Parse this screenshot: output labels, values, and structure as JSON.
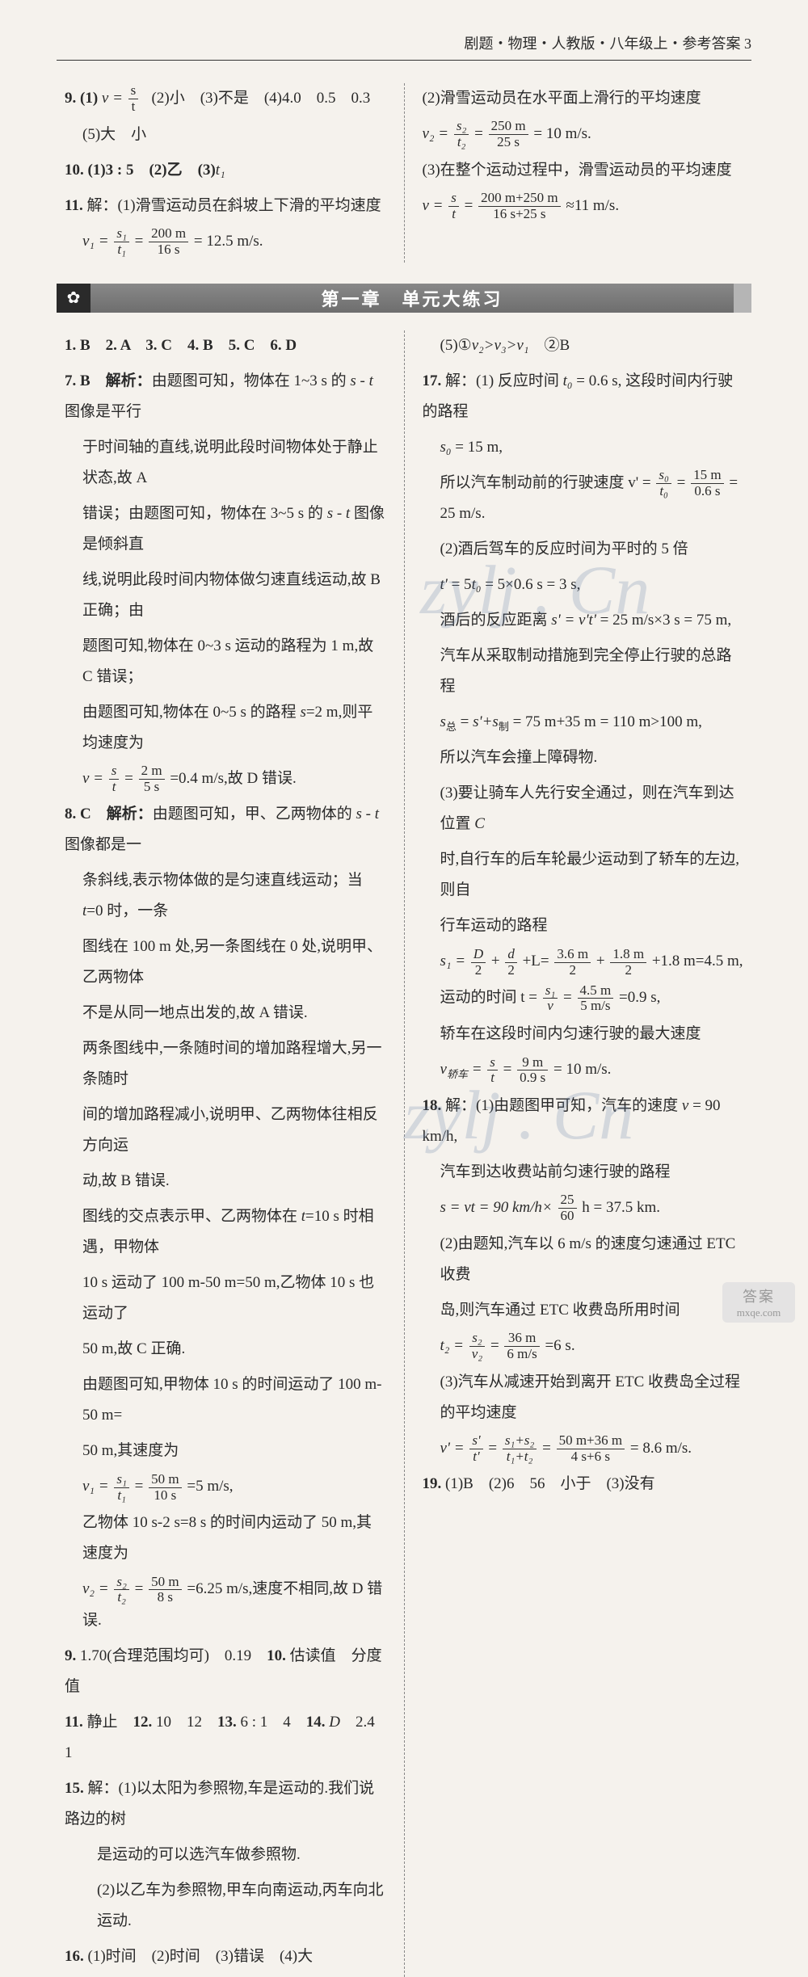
{
  "page": {
    "header": "剧题・物理・人教版・八年级上・参考答案 3",
    "background_color": "#f5f2ed",
    "text_color": "#2a2a2a",
    "body_fontsize": 19,
    "line_height": 2.0
  },
  "banner": {
    "icon": "✿",
    "title": "第一章　单元大练习",
    "left_bg": "#2a2a2a",
    "mid_bg": "#777777",
    "title_color": "#ffffff",
    "title_fontsize": 22
  },
  "top_left": {
    "q9": "9. (1)",
    "q9_formula_lhs": "v =",
    "q9_frac_num": "s",
    "q9_frac_den": "t",
    "q9_rest": "(2)小　(3)不是　(4)4.0　0.5　0.3",
    "q9_line2": "(5)大　小",
    "q10": "10. (1)3 : 5　(2)乙　(3)",
    "q10_t1": "t₁",
    "q11_head": "11. 解：(1)滑雪运动员在斜坡上下滑的平均速度",
    "q11_lhs": "v₁ =",
    "q11_mid_num": "s₁",
    "q11_mid_den": "t₁",
    "q11_eq": "=",
    "q11_r_num": "200 m",
    "q11_r_den": "16 s",
    "q11_val": "= 12.5 m/s."
  },
  "top_right": {
    "l1": "(2)滑雪运动员在水平面上滑行的平均速度",
    "f2_lhs": "v₂ =",
    "f2_a_num": "s₂",
    "f2_a_den": "t₂",
    "f2_eq": "=",
    "f2_b_num": "250 m",
    "f2_b_den": "25 s",
    "f2_val": "= 10 m/s.",
    "l3": "(3)在整个运动过程中，滑雪运动员的平均速度",
    "f3_lhs": "v =",
    "f3_a_num": "s",
    "f3_a_den": "t",
    "f3_eq": "=",
    "f3_b_num": "200 m+250 m",
    "f3_b_den": "16 s+25 s",
    "f3_val": "≈11 m/s."
  },
  "main_left": {
    "mcq": "1. B　2. A　3. C　4. B　5. C　6. D",
    "q7_head": "7. B　解析：由题图可知，物体在 1~3 s 的 s - t 图像是平行",
    "q7_l2": "于时间轴的直线,说明此段时间物体处于静止状态,故 A",
    "q7_l3": "错误；由题图可知，物体在 3~5 s 的 s - t 图像是倾斜直",
    "q7_l4": "线,说明此段时间内物体做匀速直线运动,故 B 正确；由",
    "q7_l5": "题图可知,物体在 0~3 s 运动的路程为 1 m,故 C 错误；",
    "q7_l6": "由题图可知,物体在 0~5 s 的路程 s=2 m,则平均速度为",
    "q7_f_lhs": "v =",
    "q7_f_a_num": "s",
    "q7_f_a_den": "t",
    "q7_f_eq": "=",
    "q7_f_b_num": "2 m",
    "q7_f_b_den": "5 s",
    "q7_f_val": "=0.4 m/s,故 D 错误.",
    "q8_head": "8. C　解析：由题图可知，甲、乙两物体的 s - t 图像都是一",
    "q8_l2": "条斜线,表示物体做的是匀速直线运动；当 t=0 时，一条",
    "q8_l3": "图线在 100 m 处,另一条图线在 0 处,说明甲、乙两物体",
    "q8_l4": "不是从同一地点出发的,故 A 错误.",
    "q8_l5": "两条图线中,一条随时间的增加路程增大,另一条随时",
    "q8_l6": "间的增加路程减小,说明甲、乙两物体往相反方向运",
    "q8_l7": "动,故 B 错误.",
    "q8_l8": "图线的交点表示甲、乙两物体在 t=10 s 时相遇，甲物体",
    "q8_l9": "10 s 运动了 100 m-50 m=50 m,乙物体 10 s 也运动了",
    "q8_l10": "50 m,故 C 正确.",
    "q8_l11": "由题图可知,甲物体 10 s 的时间运动了 100 m-50 m=",
    "q8_l12": "50 m,其速度为",
    "q8_f1_lhs": "v₁ =",
    "q8_f1_a_num": "s₁",
    "q8_f1_a_den": "t₁",
    "q8_f1_eq": "=",
    "q8_f1_b_num": "50 m",
    "q8_f1_b_den": "10 s",
    "q8_f1_val": "=5 m/s,",
    "q8_l13": "乙物体 10 s-2 s=8 s 的时间内运动了 50 m,其速度为",
    "q8_f2_lhs": "v₂ =",
    "q8_f2_a_num": "s₂",
    "q8_f2_a_den": "t₂",
    "q8_f2_eq": "=",
    "q8_f2_b_num": "50 m",
    "q8_f2_b_den": "8 s",
    "q8_f2_val": "=6.25 m/s,速度不相同,故 D 错误.",
    "q9": "9. 1.70(合理范围均可)　0.19　10. 估读值　分度值",
    "q11": "11. 静止　12. 10　12　13. 6 : 1　4　14. D　2.4　1",
    "q15_head": "15. 解：(1)以太阳为参照物,车是运动的.我们说路边的树",
    "q15_l2": "是运动的可以选汽车做参照物.",
    "q15_l3": "(2)以乙车为参照物,甲车向南运动,丙车向北运动.",
    "q16": "16. (1)时间　(2)时间　(3)错误　(4)大"
  },
  "main_right": {
    "l0": "(5)①v₂>v₃>v₁　②B",
    "q17_head": "17. 解：(1) 反应时间 t₀ = 0.6 s, 这段时间内行驶的路程",
    "q17_l2": "s₀ = 15 m,",
    "q17_l3_pre": "所以汽车制动前的行驶速度 v' =",
    "q17_f1_a_num": "s₀",
    "q17_f1_a_den": "t₀",
    "q17_f1_eq": "=",
    "q17_f1_b_num": "15 m",
    "q17_f1_b_den": "0.6 s",
    "q17_f1_val": "= 25 m/s.",
    "q17_l4": "(2)酒后驾车的反应时间为平时的 5 倍",
    "q17_l5": "t' = 5t₀ = 5×0.6 s = 3 s,",
    "q17_l6": "酒后的反应距离 s' = v't' = 25 m/s×3 s = 75 m,",
    "q17_l7": "汽车从采取制动措施到完全停止行驶的总路程",
    "q17_l8": "s总 = s'+s制 = 75 m+35 m = 110 m>100 m,",
    "q17_l9": "所以汽车会撞上障碍物.",
    "q17_l10": "(3)要让骑车人先行安全通过，则在汽车到达位置 C",
    "q17_l11": "时,自行车的后车轮最少运动到了轿车的左边,则自",
    "q17_l12": "行车运动的路程",
    "q17_f2_lhs": "s₁ =",
    "q17_f2_a_num": "D",
    "q17_f2_a_den": "2",
    "q17_f2_p1": "+",
    "q17_f2_b_num": "d",
    "q17_f2_b_den": "2",
    "q17_f2_p2": "+L=",
    "q17_f2_c_num": "3.6 m",
    "q17_f2_c_den": "2",
    "q17_f2_p3": "+",
    "q17_f2_d_num": "1.8 m",
    "q17_f2_d_den": "2",
    "q17_f2_val": "+1.8 m=4.5 m,",
    "q17_l13_pre": "运动的时间 t =",
    "q17_f3_a_num": "s₁",
    "q17_f3_a_den": "v",
    "q17_f3_eq": "=",
    "q17_f3_b_num": "4.5 m",
    "q17_f3_b_den": "5 m/s",
    "q17_f3_val": "=0.9 s,",
    "q17_l14": "轿车在这段时间内匀速行驶的最大速度",
    "q17_f4_lhs": "v轿车 =",
    "q17_f4_a_num": "s",
    "q17_f4_a_den": "t",
    "q17_f4_eq": "=",
    "q17_f4_b_num": "9 m",
    "q17_f4_b_den": "0.9 s",
    "q17_f4_val": "= 10 m/s.",
    "q18_head": "18. 解：(1)由题图甲可知，汽车的速度 v = 90 km/h,",
    "q18_l2": "汽车到达收费站前匀速行驶的路程",
    "q18_f1_lhs": "s = vt = 90 km/h×",
    "q18_f1_num": "25",
    "q18_f1_den": "60",
    "q18_f1_val": " h = 37.5 km.",
    "q18_l3": "(2)由题知,汽车以 6 m/s 的速度匀速通过 ETC 收费",
    "q18_l4": "岛,则汽车通过 ETC 收费岛所用时间",
    "q18_f2_lhs": "t₂ =",
    "q18_f2_a_num": "s₂",
    "q18_f2_a_den": "v₂",
    "q18_f2_eq": "=",
    "q18_f2_b_num": "36 m",
    "q18_f2_b_den": "6 m/s",
    "q18_f2_val": "=6 s.",
    "q18_l5": "(3)汽车从减速开始到离开 ETC 收费岛全过程的平均速度",
    "q18_f3_lhs": "v' =",
    "q18_f3_a_num": "s'",
    "q18_f3_a_den": "t'",
    "q18_f3_eq1": "=",
    "q18_f3_b_num": "s₁+s₂",
    "q18_f3_b_den": "t₁+t₂",
    "q18_f3_eq2": "=",
    "q18_f3_c_num": "50 m+36 m",
    "q18_f3_c_den": "4 s+6 s",
    "q18_f3_val": "= 8.6 m/s.",
    "q19": "19. (1)B　(2)6　56　小于　(3)没有"
  },
  "watermark": {
    "text": "zylj . Cn",
    "color": "rgba(90,120,160,0.22)",
    "fontsize": 86
  },
  "badge": {
    "top": "答案",
    "bot": "mxqe.com"
  }
}
